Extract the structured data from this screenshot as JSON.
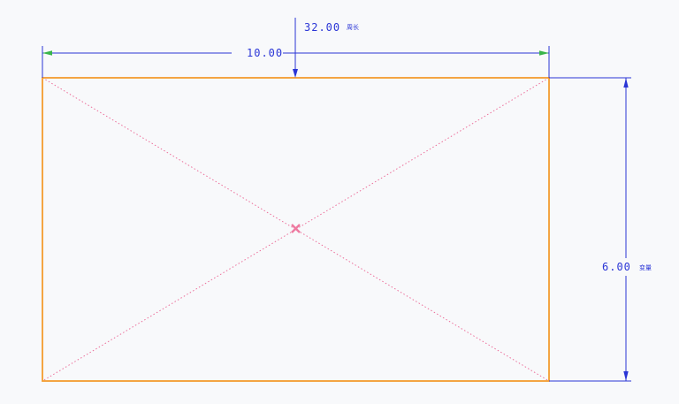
{
  "colors": {
    "background": "#f8f9fb",
    "rectangle": "#f39c2f",
    "dimension": "#2a35d6",
    "diagonal": "#ec6f9a",
    "center_mark": "#ee7aa0",
    "green_arrow": "#39b54a"
  },
  "dimensions": {
    "perimeter": {
      "value": "32.00",
      "tag": "周长"
    },
    "width": {
      "value": "10.00"
    },
    "height": {
      "value": "6.00",
      "tag": "变量"
    }
  },
  "shapes": {
    "rectangle": "rectangle",
    "diagonals": "construction-diagonals",
    "center": "center-x-icon"
  }
}
